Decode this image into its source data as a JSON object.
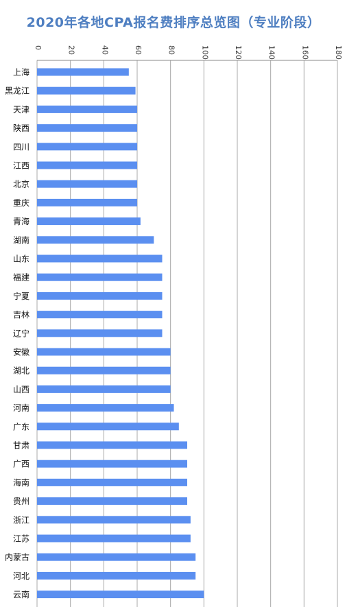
{
  "chart_data": {
    "type": "bar",
    "orientation": "horizontal",
    "title": "2020年各地CPA报名费排序总览图（专业阶段）",
    "xlabel": "",
    "ylabel": "",
    "xlim": [
      0,
      180
    ],
    "xticks": [
      "0",
      "20",
      "40",
      "60",
      "80",
      "100",
      "120",
      "140",
      "160",
      "180"
    ],
    "grid": true,
    "bar_color": "#5b8ff0",
    "grid_color": "#a8a8a8",
    "categories": [
      "上海",
      "黑龙江",
      "天津",
      "陕西",
      "四川",
      "江西",
      "北京",
      "重庆",
      "青海",
      "湖南",
      "山东",
      "福建",
      "宁夏",
      "吉林",
      "辽宁",
      "安徽",
      "湖北",
      "山西",
      "河南",
      "广东",
      "甘肃",
      "广西",
      "海南",
      "贵州",
      "浙江",
      "江苏",
      "内蒙古",
      "河北",
      "云南"
    ],
    "values": [
      55,
      59,
      60,
      60,
      60,
      60,
      60,
      60,
      62,
      70,
      75,
      75,
      75,
      75,
      75,
      80,
      80,
      80,
      82,
      85,
      90,
      90,
      90,
      90,
      92,
      92,
      95,
      95,
      100
    ]
  }
}
